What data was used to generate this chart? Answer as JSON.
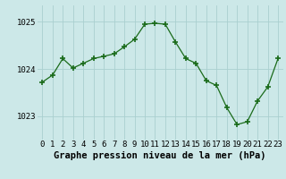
{
  "x": [
    0,
    1,
    2,
    3,
    4,
    5,
    6,
    7,
    8,
    9,
    10,
    11,
    12,
    13,
    14,
    15,
    16,
    17,
    18,
    19,
    20,
    21,
    22,
    23
  ],
  "y": [
    1023.72,
    1023.87,
    1024.22,
    1024.02,
    1024.12,
    1024.22,
    1024.27,
    1024.32,
    1024.47,
    1024.63,
    1024.95,
    1024.97,
    1024.95,
    1024.57,
    1024.22,
    1024.12,
    1023.75,
    1023.65,
    1023.18,
    1022.82,
    1022.88,
    1023.32,
    1023.62,
    1024.22
  ],
  "title": "Graphe pression niveau de la mer (hPa)",
  "bg_color": "#cce8e8",
  "line_color": "#1a6b1a",
  "marker_color": "#1a6b1a",
  "grid_color": "#aacfcf",
  "yticks": [
    1023,
    1024,
    1025
  ],
  "ylim": [
    1022.5,
    1025.35
  ],
  "xlim": [
    -0.5,
    23.5
  ],
  "xticks": [
    0,
    1,
    2,
    3,
    4,
    5,
    6,
    7,
    8,
    9,
    10,
    11,
    12,
    13,
    14,
    15,
    16,
    17,
    18,
    19,
    20,
    21,
    22,
    23
  ],
  "tick_label_size": 6.5,
  "title_fontsize": 7.5,
  "title_fontweight": "bold"
}
